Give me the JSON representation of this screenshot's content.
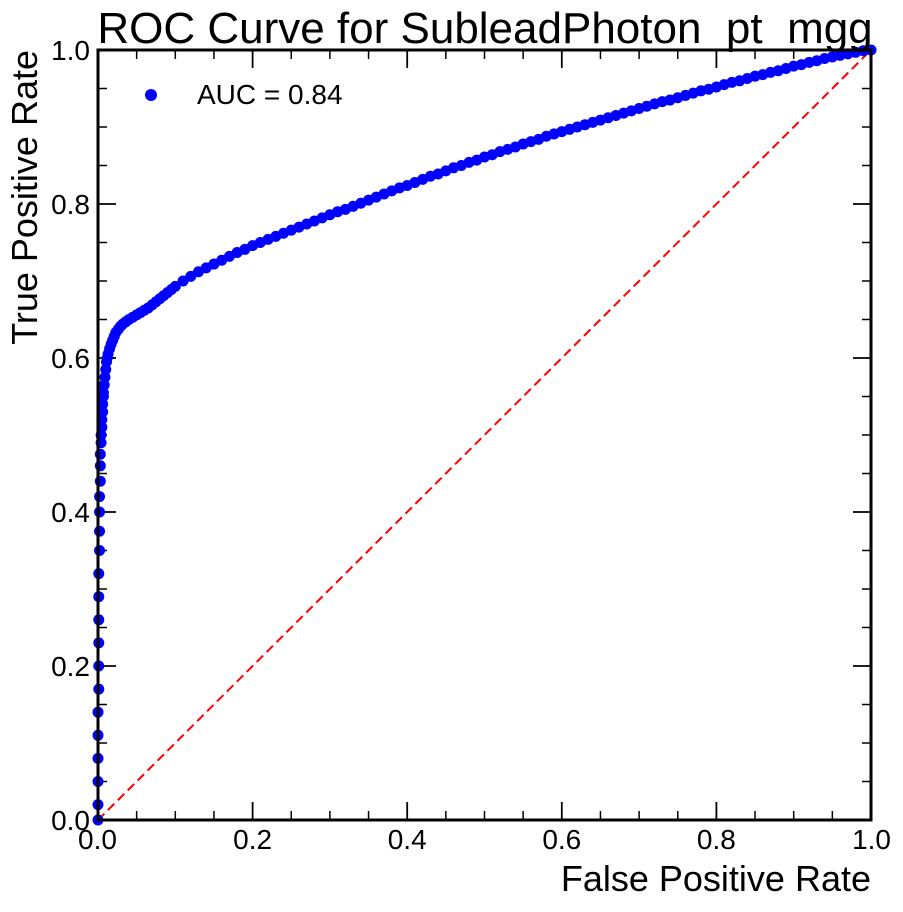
{
  "colors": {
    "points": "#0000ff",
    "diagonal": "#ff0000",
    "axis": "#000000"
  },
  "chart_data": {
    "type": "scatter",
    "title": "ROC Curve for SubleadPhoton_pt_mgg",
    "xlabel": "False Positive Rate",
    "ylabel": "True Positive Rate",
    "xlim": [
      0.0,
      1.0
    ],
    "ylim": [
      0.0,
      1.0
    ],
    "grid": false,
    "legend_position": "top-left",
    "x_ticks": [
      "0.0",
      "0.2",
      "0.4",
      "0.6",
      "0.8",
      "1.0"
    ],
    "y_ticks": [
      "0.0",
      "0.2",
      "0.4",
      "0.6",
      "0.8",
      "1.0"
    ],
    "series": [
      {
        "name": "AUC = 0.84",
        "marker": "circle",
        "x": [
          0.0,
          0.0,
          0.0,
          0.0,
          0.0,
          0.0,
          0.001,
          0.001,
          0.001,
          0.001,
          0.001,
          0.001,
          0.002,
          0.002,
          0.002,
          0.002,
          0.003,
          0.003,
          0.003,
          0.004,
          0.004,
          0.005,
          0.005,
          0.006,
          0.006,
          0.007,
          0.007,
          0.008,
          0.009,
          0.01,
          0.011,
          0.012,
          0.013,
          0.015,
          0.017,
          0.019,
          0.021,
          0.023,
          0.026,
          0.029,
          0.032,
          0.036,
          0.04,
          0.045,
          0.05,
          0.055,
          0.06,
          0.065,
          0.07,
          0.075,
          0.08,
          0.085,
          0.09,
          0.095,
          0.1,
          0.11,
          0.12,
          0.13,
          0.14,
          0.15,
          0.16,
          0.17,
          0.18,
          0.19,
          0.2,
          0.21,
          0.22,
          0.23,
          0.24,
          0.25,
          0.26,
          0.27,
          0.28,
          0.29,
          0.3,
          0.31,
          0.32,
          0.33,
          0.34,
          0.35,
          0.36,
          0.37,
          0.38,
          0.39,
          0.4,
          0.41,
          0.42,
          0.43,
          0.44,
          0.45,
          0.46,
          0.47,
          0.48,
          0.49,
          0.5,
          0.51,
          0.52,
          0.53,
          0.54,
          0.55,
          0.56,
          0.57,
          0.58,
          0.59,
          0.6,
          0.61,
          0.62,
          0.63,
          0.64,
          0.65,
          0.66,
          0.67,
          0.68,
          0.69,
          0.7,
          0.71,
          0.72,
          0.73,
          0.74,
          0.75,
          0.76,
          0.77,
          0.78,
          0.79,
          0.8,
          0.81,
          0.82,
          0.83,
          0.84,
          0.85,
          0.86,
          0.87,
          0.88,
          0.89,
          0.9,
          0.91,
          0.92,
          0.93,
          0.94,
          0.95,
          0.96,
          0.97,
          0.98,
          0.99,
          1.0
        ],
        "y": [
          0.0,
          0.02,
          0.05,
          0.08,
          0.11,
          0.14,
          0.17,
          0.2,
          0.23,
          0.26,
          0.29,
          0.32,
          0.35,
          0.375,
          0.4,
          0.42,
          0.44,
          0.46,
          0.475,
          0.49,
          0.5,
          0.51,
          0.52,
          0.53,
          0.54,
          0.55,
          0.555,
          0.565,
          0.575,
          0.585,
          0.595,
          0.6,
          0.605,
          0.612,
          0.618,
          0.623,
          0.628,
          0.633,
          0.637,
          0.641,
          0.644,
          0.647,
          0.65,
          0.653,
          0.656,
          0.659,
          0.662,
          0.665,
          0.669,
          0.673,
          0.677,
          0.681,
          0.685,
          0.689,
          0.693,
          0.7,
          0.706,
          0.712,
          0.717,
          0.722,
          0.727,
          0.732,
          0.737,
          0.741,
          0.746,
          0.75,
          0.754,
          0.758,
          0.762,
          0.766,
          0.77,
          0.774,
          0.778,
          0.782,
          0.786,
          0.79,
          0.793,
          0.797,
          0.801,
          0.805,
          0.809,
          0.813,
          0.817,
          0.821,
          0.824,
          0.828,
          0.832,
          0.836,
          0.839,
          0.843,
          0.847,
          0.85,
          0.854,
          0.857,
          0.861,
          0.864,
          0.868,
          0.871,
          0.874,
          0.878,
          0.881,
          0.884,
          0.888,
          0.891,
          0.894,
          0.897,
          0.9,
          0.903,
          0.906,
          0.909,
          0.912,
          0.915,
          0.918,
          0.921,
          0.924,
          0.927,
          0.93,
          0.933,
          0.935,
          0.938,
          0.941,
          0.944,
          0.947,
          0.949,
          0.952,
          0.955,
          0.958,
          0.96,
          0.963,
          0.966,
          0.968,
          0.971,
          0.973,
          0.976,
          0.979,
          0.981,
          0.984,
          0.986,
          0.989,
          0.991,
          0.993,
          0.995,
          0.997,
          0.999,
          1.0
        ]
      },
      {
        "name": "",
        "style": "dashed-line",
        "x": [
          0.0,
          1.0
        ],
        "y": [
          0.0,
          1.0
        ]
      }
    ]
  }
}
